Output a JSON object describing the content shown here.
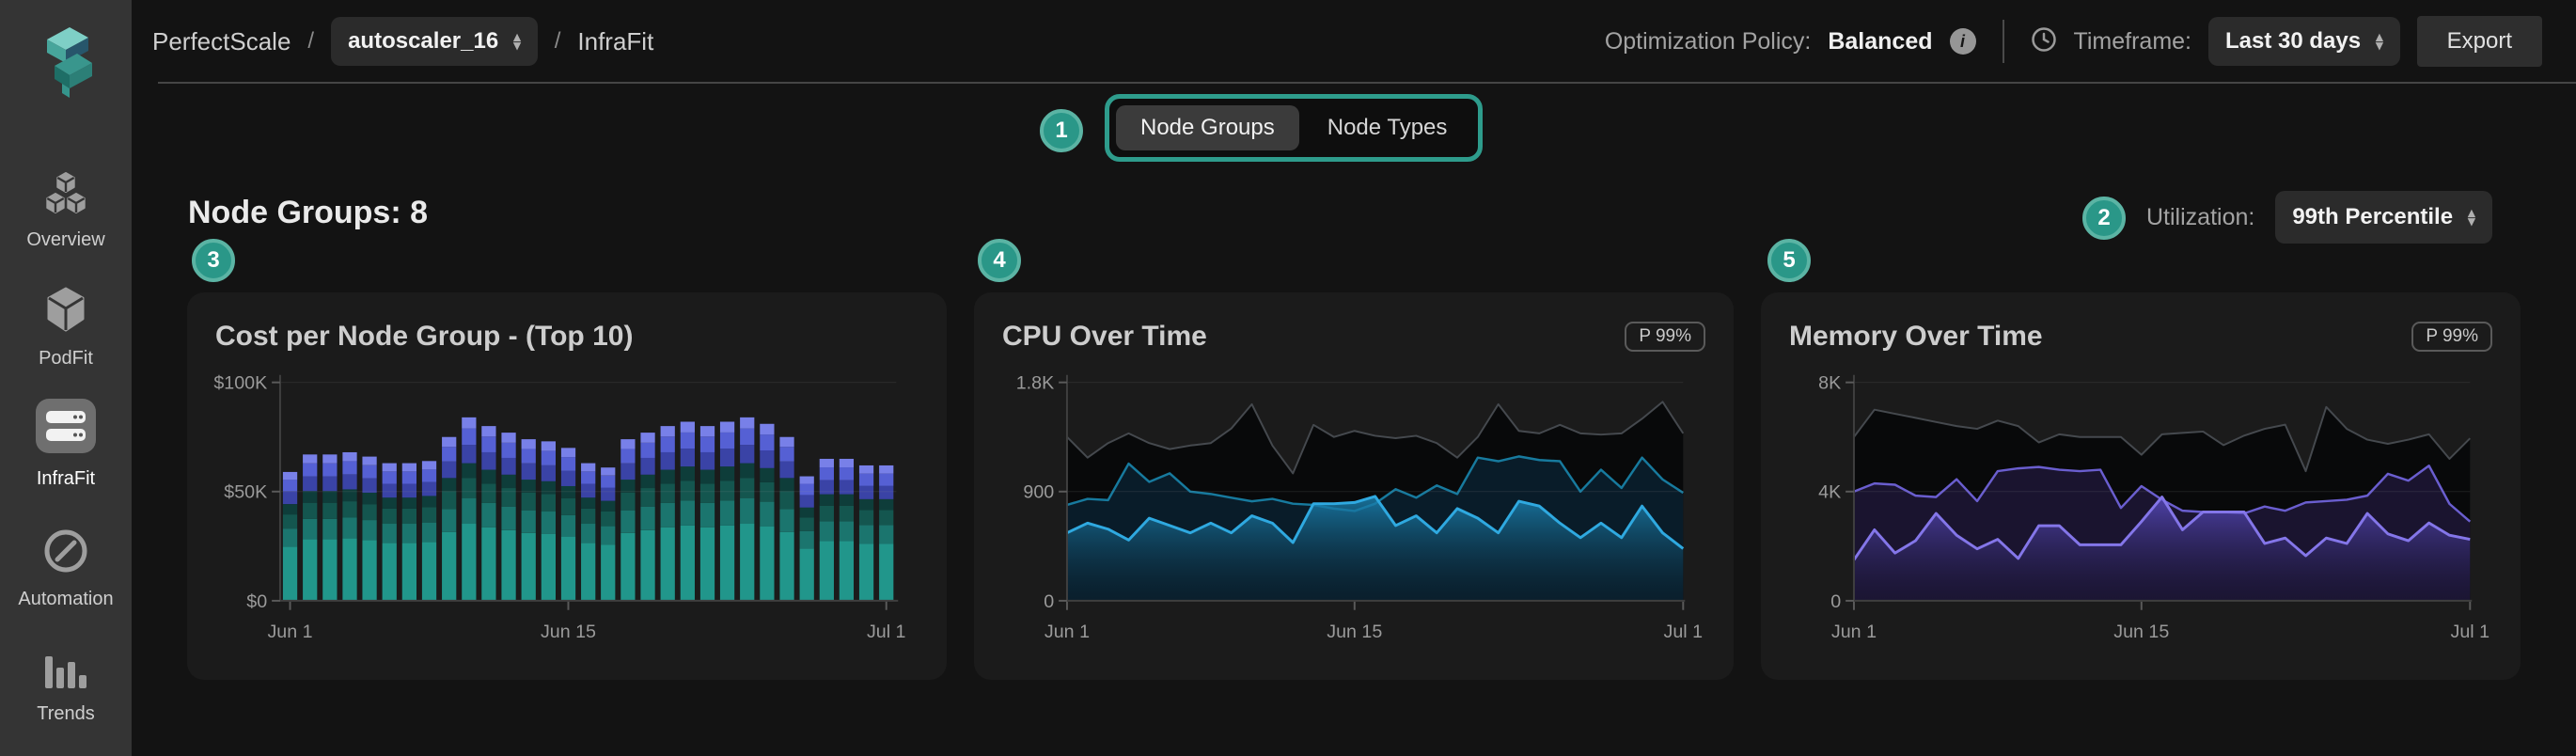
{
  "app": {
    "name": "PerfectScale"
  },
  "sidebar": {
    "items": [
      {
        "label": "Overview",
        "icon": "cubes-icon",
        "active": false
      },
      {
        "label": "PodFit",
        "icon": "cube-icon",
        "active": false
      },
      {
        "label": "InfraFit",
        "icon": "servers-icon",
        "active": true
      },
      {
        "label": "Automation",
        "icon": "slashed-circle-icon",
        "active": false
      },
      {
        "label": "Trends",
        "icon": "bar-chart-icon",
        "active": false
      }
    ]
  },
  "header": {
    "breadcrumb": {
      "app": "PerfectScale",
      "separator": "/",
      "cluster_select": {
        "value": "autoscaler_16"
      },
      "page": "InfraFit"
    },
    "optimization_policy": {
      "label": "Optimization Policy:",
      "value": "Balanced"
    },
    "timeframe": {
      "label": "Timeframe:",
      "value": "Last 30 days"
    },
    "export_label": "Export"
  },
  "annotations": {
    "color": "#2A9788",
    "badges": [
      "1",
      "2",
      "3",
      "4",
      "5"
    ]
  },
  "view_toggle": {
    "options": [
      {
        "label": "Node Groups",
        "active": true
      },
      {
        "label": "Node Types",
        "active": false
      }
    ]
  },
  "page": {
    "heading": "Node Groups: 8",
    "utilization": {
      "label": "Utilization:",
      "value": "99th Percentile"
    }
  },
  "chart_data": [
    {
      "type": "stacked-bar",
      "title": "Cost per Node Group - (Top 10)",
      "ymax": 100,
      "ylim": [
        0,
        100
      ],
      "points": 31,
      "x_range": {
        "start": "Jun 1",
        "end": "Jul 1",
        "points": 31
      },
      "yticks": [
        {
          "v": 0,
          "label": "$0"
        },
        {
          "v": 50,
          "label": "$50K"
        },
        {
          "v": 100,
          "label": "$100K"
        }
      ],
      "xticks": [
        {
          "i": 0,
          "label": "Jun 1"
        },
        {
          "i": 14,
          "label": "Jun 15"
        },
        {
          "i": 30,
          "label": "Jul 1"
        }
      ],
      "totals_k_usd": [
        59,
        67,
        67,
        68,
        66,
        63,
        63,
        64,
        75,
        84,
        80,
        77,
        74,
        73,
        70,
        63,
        61,
        74,
        77,
        80,
        82,
        80,
        82,
        84,
        81,
        75,
        57,
        65,
        65,
        62,
        62
      ],
      "series": [
        {
          "name": "segment-teal-bright",
          "color": "#21968B",
          "fraction": 0.42
        },
        {
          "name": "segment-teal-mid",
          "color": "#1B756E",
          "fraction": 0.14
        },
        {
          "name": "segment-teal-dark",
          "color": "#14564F",
          "fraction": 0.11
        },
        {
          "name": "segment-teal-deep",
          "color": "#0E3D3A",
          "fraction": 0.08
        },
        {
          "name": "segment-indigo-dark",
          "color": "#3A43A6",
          "fraction": 0.1
        },
        {
          "name": "segment-indigo",
          "color": "#5560D4",
          "fraction": 0.09
        },
        {
          "name": "segment-indigo-light",
          "color": "#7880E8",
          "fraction": 0.06
        }
      ]
    },
    {
      "type": "area",
      "title": "CPU Over Time",
      "badge": "P 99%",
      "ymax": 1800,
      "ylim": [
        0,
        1800
      ],
      "points": 31,
      "x_range": {
        "start": "Jun 1",
        "end": "Jul 1",
        "points": 31
      },
      "yticks": [
        {
          "v": 0,
          "label": "0"
        },
        {
          "v": 900,
          "label": "900"
        },
        {
          "v": 1800,
          "label": "1.8K"
        }
      ],
      "xticks": [
        {
          "i": 0,
          "label": "Jun 1"
        },
        {
          "i": 14,
          "label": "Jun 15"
        },
        {
          "i": 30,
          "label": "Jul 1"
        }
      ],
      "series": [
        {
          "name": "upper-black-line",
          "line": "#45494e",
          "line_width": 2,
          "fill": "rgba(8,9,10,0.97)",
          "values": [
            1350,
            1180,
            1300,
            1380,
            1300,
            1250,
            1280,
            1300,
            1420,
            1620,
            1280,
            1050,
            1450,
            1350,
            1400,
            1360,
            1340,
            1360,
            1300,
            1180,
            1350,
            1620,
            1400,
            1380,
            1450,
            1380,
            1370,
            1380,
            1500,
            1640,
            1380
          ]
        },
        {
          "name": "middle-teal-line",
          "line": "#177a9e",
          "line_width": 2.5,
          "fill": "rgba(9,30,43,0.95)",
          "values": [
            790,
            840,
            830,
            1130,
            980,
            1050,
            900,
            880,
            850,
            820,
            840,
            800,
            790,
            760,
            740,
            800,
            920,
            850,
            950,
            880,
            1180,
            1150,
            1190,
            1160,
            1150,
            900,
            1080,
            930,
            1180,
            1000,
            890
          ]
        },
        {
          "name": "lower-blue-line",
          "line": "#2FA9E0",
          "line_width": 3,
          "gradient": [
            "rgba(26,130,178,0.85)",
            "rgba(13,42,58,0.18)"
          ],
          "values": [
            560,
            640,
            590,
            500,
            680,
            620,
            560,
            640,
            560,
            700,
            640,
            480,
            800,
            800,
            810,
            860,
            620,
            700,
            560,
            760,
            680,
            560,
            820,
            780,
            640,
            520,
            640,
            520,
            780,
            560,
            430
          ]
        }
      ]
    },
    {
      "type": "area",
      "title": "Memory Over Time",
      "badge": "P 99%",
      "ymax": 8000,
      "ylim": [
        0,
        8000
      ],
      "points": 31,
      "x_range": {
        "start": "Jun 1",
        "end": "Jul 1",
        "points": 31
      },
      "yticks": [
        {
          "v": 0,
          "label": "0"
        },
        {
          "v": 4000,
          "label": "4K"
        },
        {
          "v": 8000,
          "label": "8K"
        }
      ],
      "xticks": [
        {
          "i": 0,
          "label": "Jun 1"
        },
        {
          "i": 14,
          "label": "Jun 15"
        },
        {
          "i": 30,
          "label": "Jul 1"
        }
      ],
      "series": [
        {
          "name": "upper-black-line",
          "line": "#45494e",
          "line_width": 2,
          "fill": "rgba(8,9,10,0.97)",
          "values": [
            6000,
            7000,
            6850,
            6700,
            6550,
            6400,
            6300,
            6600,
            6400,
            5800,
            6100,
            6000,
            6000,
            6000,
            5350,
            6100,
            6150,
            6200,
            5700,
            6050,
            6300,
            6450,
            4750,
            7100,
            6300,
            5900,
            5750,
            5900,
            6100,
            5200,
            5950
          ]
        },
        {
          "name": "middle-purple-line",
          "line": "#6A5ECF",
          "line_width": 2.5,
          "fill": "rgba(27,21,49,0.95)",
          "values": [
            4000,
            4300,
            4250,
            3850,
            3800,
            4450,
            3650,
            4750,
            4850,
            4900,
            4800,
            4750,
            4800,
            3400,
            4200,
            3700,
            3300,
            3250,
            3250,
            3200,
            3450,
            3300,
            3600,
            3650,
            3700,
            3850,
            4650,
            4400,
            4950,
            3550,
            2900
          ]
        },
        {
          "name": "lower-purple-line",
          "line": "#8476E9",
          "line_width": 3,
          "gradient": [
            "rgba(88,74,190,0.85)",
            "rgba(30,24,62,0.22)"
          ],
          "values": [
            1500,
            2600,
            1750,
            2200,
            3200,
            2400,
            1900,
            2250,
            1550,
            2750,
            2750,
            2050,
            2050,
            2050,
            2900,
            3800,
            2600,
            3250,
            3250,
            3250,
            2100,
            2300,
            1650,
            2300,
            2100,
            3200,
            2450,
            2200,
            2850,
            2400,
            2250
          ]
        }
      ]
    }
  ]
}
